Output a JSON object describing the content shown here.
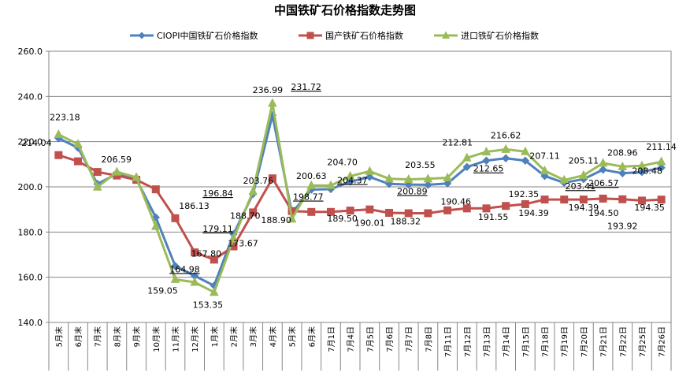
{
  "chart_data": {
    "type": "line",
    "title": "中国铁矿石价格指数走势图",
    "xlabel": "",
    "ylabel": "",
    "ylim": [
      140,
      260
    ],
    "yticks": [
      "140.0",
      "160.0",
      "180.0",
      "200.0",
      "220.0",
      "240.0",
      "260.0"
    ],
    "grid": true,
    "legend_position": "top",
    "categories": [
      "5月末",
      "6月末",
      "7月末",
      "8月末",
      "9月末",
      "10月末",
      "11月末",
      "12月末",
      "1月末",
      "2月末",
      "3月末",
      "4月末",
      "5月末",
      "6月末",
      "7月1日",
      "7月4日",
      "7月5日",
      "7月6日",
      "7月7日",
      "7月8日",
      "7月11日",
      "7月12日",
      "7月13日",
      "7月14日",
      "7月15日",
      "7月18日",
      "7月19日",
      "7月20日",
      "7月21日",
      "7月22日",
      "7月25日",
      "7月26日"
    ],
    "series": [
      {
        "name": "CIOPI中国铁矿石价格指数",
        "color": "#4f81bd",
        "marker": "diamond",
        "values": [
          221.5,
          217.3,
          201.3,
          205.8,
          203.4,
          186.5,
          164.98,
          160.6,
          156.3,
          179.11,
          196.84,
          231.72,
          188.5,
          198.77,
          199.0,
          202.3,
          204.37,
          201.3,
          201.0,
          200.89,
          201.5,
          208.8,
          211.6,
          212.65,
          211.6,
          204.8,
          201.8,
          203.41,
          207.6,
          206.0,
          206.57,
          208.48
        ]
      },
      {
        "name": "国产铁矿石价格指数",
        "color": "#c0504d",
        "marker": "square",
        "values": [
          214.04,
          211.3,
          206.59,
          205.0,
          203.1,
          198.9,
          186.13,
          171.0,
          167.8,
          173.67,
          188.7,
          203.76,
          189.3,
          188.9,
          188.9,
          189.5,
          190.01,
          188.5,
          188.32,
          188.32,
          189.6,
          190.46,
          190.46,
          191.55,
          192.35,
          194.39,
          194.39,
          194.39,
          194.8,
          194.5,
          193.92,
          194.35
        ]
      },
      {
        "name": "进口铁矿石价格指数",
        "color": "#9bbb59",
        "marker": "triangle",
        "values": [
          223.18,
          218.9,
          199.9,
          206.6,
          204.2,
          182.5,
          159.05,
          157.8,
          153.35,
          177.2,
          198.0,
          236.99,
          185.8,
          200.63,
          200.6,
          204.7,
          206.9,
          203.55,
          203.3,
          203.55,
          204.0,
          212.81,
          215.5,
          216.62,
          215.6,
          207.11,
          203.0,
          205.11,
          210.5,
          208.96,
          209.3,
          211.14
        ]
      }
    ],
    "data_labels": [
      {
        "text": "223.18",
        "cat": 0,
        "y": 223.18,
        "underline": false
      },
      {
        "text": "214.04",
        "cat": 0,
        "y": 214.04,
        "underline": false
      },
      {
        "text": "206.59",
        "cat": 2,
        "y": 206.59,
        "underline": false
      },
      {
        "text": "186.13",
        "cat": 6,
        "y": 186.13,
        "underline": false
      },
      {
        "text": "164.98",
        "cat": 6,
        "y": 164.98,
        "underline": true
      },
      {
        "text": "159.05",
        "cat": 6,
        "y": 159.05,
        "underline": false
      },
      {
        "text": "167.80",
        "cat": 8,
        "y": 167.8,
        "underline": false
      },
      {
        "text": "153.35",
        "cat": 8,
        "y": 153.35,
        "underline": false
      },
      {
        "text": "179.11",
        "cat": 9,
        "y": 179.11,
        "underline": true
      },
      {
        "text": "173.67",
        "cat": 9,
        "y": 173.67,
        "underline": false
      },
      {
        "text": "196.84",
        "cat": 9,
        "y": 196.84,
        "underline": true
      },
      {
        "text": "188.70",
        "cat": 10,
        "y": 188.7,
        "underline": false
      },
      {
        "text": "236.99",
        "cat": 11,
        "y": 236.99,
        "underline": false
      },
      {
        "text": "231.72",
        "cat": 12,
        "y": 231.72,
        "underline": true
      },
      {
        "text": "203.76",
        "cat": 11,
        "y": 203.76,
        "underline": false
      },
      {
        "text": "188.90",
        "cat": 12,
        "y": 188.9,
        "underline": false
      },
      {
        "text": "200.63",
        "cat": 13,
        "y": 200.63,
        "underline": false
      },
      {
        "text": "198.77",
        "cat": 13,
        "y": 198.77,
        "underline": true
      },
      {
        "text": "204.70",
        "cat": 15,
        "y": 204.7,
        "underline": false
      },
      {
        "text": "204.37",
        "cat": 16,
        "y": 204.37,
        "underline": true
      },
      {
        "text": "189.50",
        "cat": 15,
        "y": 189.5,
        "underline": false
      },
      {
        "text": "190.01",
        "cat": 16,
        "y": 190.01,
        "underline": false
      },
      {
        "text": "188.32",
        "cat": 18,
        "y": 188.32,
        "underline": false
      },
      {
        "text": "203.55",
        "cat": 19,
        "y": 203.55,
        "underline": false
      },
      {
        "text": "200.89",
        "cat": 19,
        "y": 200.89,
        "underline": true
      },
      {
        "text": "212.81",
        "cat": 21,
        "y": 212.81,
        "underline": false
      },
      {
        "text": "190.46",
        "cat": 21,
        "y": 190.46,
        "underline": false
      },
      {
        "text": "216.62",
        "cat": 23,
        "y": 216.62,
        "underline": false
      },
      {
        "text": "212.65",
        "cat": 23,
        "y": 212.65,
        "underline": true
      },
      {
        "text": "191.55",
        "cat": 23,
        "y": 191.55,
        "underline": false
      },
      {
        "text": "192.35",
        "cat": 24,
        "y": 192.35,
        "underline": false
      },
      {
        "text": "207.11",
        "cat": 25,
        "y": 207.11,
        "underline": false
      },
      {
        "text": "194.39",
        "cat": 25,
        "y": 194.39,
        "underline": false
      },
      {
        "text": "205.11",
        "cat": 27,
        "y": 205.11,
        "underline": false
      },
      {
        "text": "203.41",
        "cat": 27,
        "y": 203.41,
        "underline": true
      },
      {
        "text": "194.39",
        "cat": 27,
        "y": 194.39,
        "underline": false
      },
      {
        "text": "208.96",
        "cat": 29,
        "y": 208.96,
        "underline": false
      },
      {
        "text": "206.57",
        "cat": 29,
        "y": 206.57,
        "underline": true
      },
      {
        "text": "194.50",
        "cat": 29,
        "y": 194.5,
        "underline": false
      },
      {
        "text": "193.92",
        "cat": 29,
        "y": 193.92,
        "underline": false
      },
      {
        "text": "211.14",
        "cat": 31,
        "y": 211.14,
        "underline": false
      },
      {
        "text": "208.48",
        "cat": 31,
        "y": 208.48,
        "underline": false
      },
      {
        "text": "194.35",
        "cat": 31,
        "y": 194.35,
        "underline": false
      }
    ]
  }
}
